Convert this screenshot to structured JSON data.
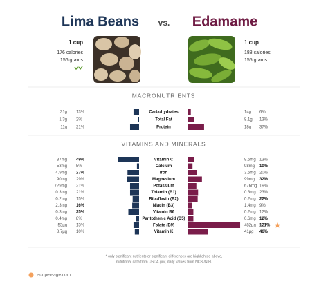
{
  "header": {
    "left_title": "Lima Beans",
    "vs": "vs.",
    "right_title": "Edamame"
  },
  "left": {
    "serving": "1 cup",
    "calories": "176 calories",
    "grams": "156 grams"
  },
  "right": {
    "serving": "1 cup",
    "calories": "188 calories",
    "grams": "155 grams"
  },
  "sections": [
    {
      "title": "MACRONUTRIENTS",
      "rows": [
        {
          "name": "Carbohydrates",
          "left_amount": "31g",
          "left_pct": 13,
          "left_pct_label": "13%",
          "right_amount": "14g",
          "right_pct": 6,
          "right_pct_label": "6%",
          "bold": null
        },
        {
          "name": "Total Fat",
          "left_amount": "1.3g",
          "left_pct": 2,
          "left_pct_label": "2%",
          "right_amount": "8.1g",
          "right_pct": 13,
          "right_pct_label": "13%",
          "bold": null
        },
        {
          "name": "Protein",
          "left_amount": "11g",
          "left_pct": 21,
          "left_pct_label": "21%",
          "right_amount": "18g",
          "right_pct": 37,
          "right_pct_label": "37%",
          "bold": null
        }
      ]
    },
    {
      "title": "VITAMINS AND MINERALS",
      "rows": [
        {
          "name": "Vitamin C",
          "left_amount": "37mg",
          "left_pct": 49,
          "left_pct_label": "49%",
          "right_amount": "9.5mg",
          "right_pct": 13,
          "right_pct_label": "13%",
          "bold": "left"
        },
        {
          "name": "Calcium",
          "left_amount": "53mg",
          "left_pct": 5,
          "left_pct_label": "5%",
          "right_amount": "98mg",
          "right_pct": 10,
          "right_pct_label": "10%",
          "bold": "right"
        },
        {
          "name": "Iron",
          "left_amount": "4.9mg",
          "left_pct": 27,
          "left_pct_label": "27%",
          "right_amount": "3.5mg",
          "right_pct": 20,
          "right_pct_label": "20%",
          "bold": "left"
        },
        {
          "name": "Magnesium",
          "left_amount": "90mg",
          "left_pct": 29,
          "left_pct_label": "29%",
          "right_amount": "99mg",
          "right_pct": 32,
          "right_pct_label": "32%",
          "bold": "right"
        },
        {
          "name": "Potassium",
          "left_amount": "729mg",
          "left_pct": 21,
          "left_pct_label": "21%",
          "right_amount": "676mg",
          "right_pct": 19,
          "right_pct_label": "19%",
          "bold": null
        },
        {
          "name": "Thiamin (B1)",
          "left_amount": "0.3mg",
          "left_pct": 21,
          "left_pct_label": "21%",
          "right_amount": "0.3mg",
          "right_pct": 23,
          "right_pct_label": "23%",
          "bold": null
        },
        {
          "name": "Riboflavin (B2)",
          "left_amount": "0.2mg",
          "left_pct": 15,
          "left_pct_label": "15%",
          "right_amount": "0.2mg",
          "right_pct": 22,
          "right_pct_label": "22%",
          "bold": "right"
        },
        {
          "name": "Niacin (B3)",
          "left_amount": "2.3mg",
          "left_pct": 16,
          "left_pct_label": "16%",
          "right_amount": "1.4mg",
          "right_pct": 9,
          "right_pct_label": "9%",
          "bold": "left"
        },
        {
          "name": "Vitamin B6",
          "left_amount": "0.3mg",
          "left_pct": 25,
          "left_pct_label": "25%",
          "right_amount": "0.2mg",
          "right_pct": 12,
          "right_pct_label": "12%",
          "bold": "left"
        },
        {
          "name": "Pantothenic Acid (B5)",
          "left_amount": "0.4mg",
          "left_pct": 8,
          "left_pct_label": "8%",
          "right_amount": "0.6mg",
          "right_pct": 12,
          "right_pct_label": "12%",
          "bold": "right"
        },
        {
          "name": "Folate (B9)",
          "left_amount": "53µg",
          "left_pct": 13,
          "left_pct_label": "13%",
          "right_amount": "482µg",
          "right_pct": 121,
          "right_pct_label": "121%",
          "bold": "right",
          "star": true
        },
        {
          "name": "Vitamin K",
          "left_amount": "8.7µg",
          "left_pct": 10,
          "left_pct_label": "10%",
          "right_amount": "41µg",
          "right_pct": 46,
          "right_pct_label": "46%",
          "bold": "right"
        }
      ]
    }
  ],
  "footer": {
    "note_line1": "* only significant nutrients or significant differences are highlighted above,",
    "note_line2": "nutritional data from USDA.gov, daily values from NCBI/NIH.",
    "site": "soupersage.com"
  }
}
